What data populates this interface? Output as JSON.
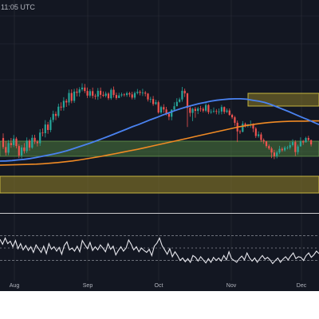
{
  "header": {
    "timestamp": "11:05 UTC"
  },
  "colors": {
    "background": "#131722",
    "up_candle": "#26a69a",
    "down_candle": "#ef5350",
    "ma_fast": "#4a82f0",
    "ma_slow": "#f08a24",
    "rsi": "#e8e8ee",
    "zone_green": "#4c7a3e",
    "zone_yellow": "#8a7a28",
    "grid": "#2a2e39"
  },
  "chart_data": [
    {
      "type": "candlestick",
      "title": "",
      "x_ticks": [
        "Aug",
        "Sep",
        "Oct",
        "Nov",
        "Dec"
      ],
      "indicators": [
        "moving-average-fast",
        "moving-average-slow"
      ],
      "zones": [
        "green-support-zone",
        "yellow-lower-zone",
        "yellow-resistance-zone"
      ],
      "candles": [
        [
          0.345,
          0.3,
          0.368,
          0.29
        ],
        [
          0.3,
          0.272,
          0.33,
          0.258
        ],
        [
          0.272,
          0.32,
          0.335,
          0.26
        ],
        [
          0.32,
          0.31,
          0.345,
          0.296
        ],
        [
          0.31,
          0.342,
          0.36,
          0.3
        ],
        [
          0.342,
          0.305,
          0.35,
          0.293
        ],
        [
          0.305,
          0.258,
          0.315,
          0.245
        ],
        [
          0.258,
          0.298,
          0.31,
          0.244
        ],
        [
          0.298,
          0.28,
          0.32,
          0.268
        ],
        [
          0.28,
          0.332,
          0.348,
          0.27
        ],
        [
          0.332,
          0.297,
          0.34,
          0.282
        ],
        [
          0.297,
          0.346,
          0.361,
          0.291
        ],
        [
          0.346,
          0.327,
          0.361,
          0.315
        ],
        [
          0.327,
          0.319,
          0.335,
          0.303
        ],
        [
          0.319,
          0.372,
          0.389,
          0.306
        ],
        [
          0.372,
          0.369,
          0.393,
          0.353
        ],
        [
          0.369,
          0.412,
          0.434,
          0.348
        ],
        [
          0.412,
          0.385,
          0.425,
          0.366
        ],
        [
          0.385,
          0.435,
          0.448,
          0.374
        ],
        [
          0.435,
          0.465,
          0.481,
          0.423
        ],
        [
          0.465,
          0.455,
          0.477,
          0.434
        ],
        [
          0.455,
          0.501,
          0.516,
          0.446
        ],
        [
          0.501,
          0.497,
          0.523,
          0.481
        ],
        [
          0.497,
          0.53,
          0.548,
          0.481
        ],
        [
          0.53,
          0.522,
          0.54,
          0.5
        ],
        [
          0.522,
          0.569,
          0.586,
          0.507
        ],
        [
          0.569,
          0.53,
          0.587,
          0.518
        ],
        [
          0.53,
          0.576,
          0.59,
          0.52
        ],
        [
          0.576,
          0.57,
          0.593,
          0.552
        ],
        [
          0.57,
          0.587,
          0.598,
          0.551
        ],
        [
          0.587,
          0.596,
          0.617,
          0.577
        ],
        [
          0.596,
          0.579,
          0.614,
          0.569
        ],
        [
          0.579,
          0.556,
          0.596,
          0.544
        ],
        [
          0.556,
          0.578,
          0.588,
          0.546
        ],
        [
          0.578,
          0.555,
          0.596,
          0.542
        ],
        [
          0.555,
          0.551,
          0.565,
          0.537
        ],
        [
          0.551,
          0.58,
          0.594,
          0.535
        ],
        [
          0.58,
          0.56,
          0.596,
          0.541
        ],
        [
          0.56,
          0.555,
          0.577,
          0.549
        ],
        [
          0.555,
          0.566,
          0.576,
          0.547
        ],
        [
          0.566,
          0.543,
          0.573,
          0.534
        ],
        [
          0.543,
          0.585,
          0.593,
          0.535
        ],
        [
          0.585,
          0.559,
          0.601,
          0.546
        ],
        [
          0.559,
          0.544,
          0.571,
          0.535
        ],
        [
          0.544,
          0.557,
          0.57,
          0.545
        ],
        [
          0.557,
          0.562,
          0.571,
          0.549
        ],
        [
          0.562,
          0.559,
          0.568,
          0.551
        ],
        [
          0.559,
          0.568,
          0.576,
          0.55
        ],
        [
          0.568,
          0.562,
          0.575,
          0.549
        ],
        [
          0.562,
          0.546,
          0.575,
          0.537
        ],
        [
          0.546,
          0.569,
          0.577,
          0.536
        ],
        [
          0.569,
          0.575,
          0.589,
          0.562
        ],
        [
          0.575,
          0.57,
          0.583,
          0.557
        ],
        [
          0.57,
          0.571,
          0.59,
          0.554
        ],
        [
          0.571,
          0.566,
          0.579,
          0.552
        ],
        [
          0.566,
          0.537,
          0.569,
          0.527
        ],
        [
          0.537,
          0.539,
          0.55,
          0.521
        ],
        [
          0.539,
          0.514,
          0.554,
          0.505
        ],
        [
          0.514,
          0.523,
          0.535,
          0.51
        ],
        [
          0.523,
          0.472,
          0.531,
          0.466
        ],
        [
          0.472,
          0.499,
          0.506,
          0.465
        ],
        [
          0.499,
          0.487,
          0.513,
          0.471
        ],
        [
          0.487,
          0.466,
          0.5,
          0.458
        ],
        [
          0.466,
          0.451,
          0.469,
          0.434
        ],
        [
          0.451,
          0.486,
          0.488,
          0.433
        ],
        [
          0.486,
          0.503,
          0.523,
          0.478
        ],
        [
          0.503,
          0.525,
          0.543,
          0.516
        ],
        [
          0.525,
          0.537,
          0.546,
          0.521
        ],
        [
          0.537,
          0.58,
          0.599,
          0.526
        ],
        [
          0.58,
          0.567,
          0.591,
          0.549
        ],
        [
          0.567,
          0.495,
          0.57,
          0.4
        ],
        [
          0.495,
          0.47,
          0.504,
          0.451
        ],
        [
          0.47,
          0.49,
          0.495,
          0.429
        ],
        [
          0.49,
          0.48,
          0.5,
          0.446
        ],
        [
          0.48,
          0.492,
          0.5,
          0.464
        ],
        [
          0.492,
          0.49,
          0.505,
          0.476
        ],
        [
          0.49,
          0.481,
          0.498,
          0.472
        ],
        [
          0.481,
          0.509,
          0.519,
          0.473
        ],
        [
          0.509,
          0.474,
          0.514,
          0.464
        ],
        [
          0.474,
          0.476,
          0.488,
          0.465
        ],
        [
          0.476,
          0.479,
          0.497,
          0.47
        ],
        [
          0.479,
          0.476,
          0.489,
          0.463
        ],
        [
          0.476,
          0.477,
          0.492,
          0.462
        ],
        [
          0.477,
          0.499,
          0.51,
          0.463
        ],
        [
          0.499,
          0.475,
          0.502,
          0.465
        ],
        [
          0.475,
          0.482,
          0.492,
          0.469
        ],
        [
          0.482,
          0.46,
          0.492,
          0.456
        ],
        [
          0.46,
          0.448,
          0.466,
          0.44
        ],
        [
          0.448,
          0.421,
          0.455,
          0.406
        ],
        [
          0.421,
          0.378,
          0.432,
          0.325
        ],
        [
          0.378,
          0.376,
          0.386,
          0.365
        ],
        [
          0.376,
          0.416,
          0.429,
          0.373
        ],
        [
          0.416,
          0.407,
          0.422,
          0.398
        ],
        [
          0.407,
          0.413,
          0.415,
          0.398
        ],
        [
          0.413,
          0.413,
          0.432,
          0.396
        ],
        [
          0.413,
          0.392,
          0.418,
          0.374
        ],
        [
          0.392,
          0.355,
          0.4,
          0.345
        ],
        [
          0.355,
          0.363,
          0.378,
          0.346
        ],
        [
          0.363,
          0.335,
          0.373,
          0.325
        ],
        [
          0.335,
          0.328,
          0.343,
          0.316
        ],
        [
          0.328,
          0.305,
          0.331,
          0.296
        ],
        [
          0.305,
          0.293,
          0.313,
          0.286
        ],
        [
          0.293,
          0.273,
          0.301,
          0.245
        ],
        [
          0.273,
          0.255,
          0.286,
          0.24
        ],
        [
          0.255,
          0.273,
          0.282,
          0.244
        ],
        [
          0.273,
          0.291,
          0.306,
          0.265
        ],
        [
          0.291,
          0.284,
          0.299,
          0.276
        ],
        [
          0.284,
          0.297,
          0.305,
          0.278
        ],
        [
          0.297,
          0.297,
          0.306,
          0.288
        ],
        [
          0.297,
          0.31,
          0.325,
          0.288
        ],
        [
          0.31,
          0.325,
          0.339,
          0.303
        ],
        [
          0.325,
          0.275,
          0.334,
          0.256
        ],
        [
          0.275,
          0.303,
          0.312,
          0.263
        ],
        [
          0.303,
          0.329,
          0.348,
          0.305
        ],
        [
          0.329,
          0.323,
          0.336,
          0.311
        ],
        [
          0.323,
          0.345,
          0.351,
          0.337
        ],
        [
          0.345,
          0.335,
          0.356,
          0.33
        ],
        [
          0.335,
          0.313,
          0.337,
          0.303
        ]
      ],
      "ma_fast": [
        0.23,
        0.231,
        0.233,
        0.236,
        0.239,
        0.243,
        0.248,
        0.254,
        0.26,
        0.266,
        0.273,
        0.281,
        0.29,
        0.3,
        0.31,
        0.32,
        0.331,
        0.342,
        0.353,
        0.365,
        0.377,
        0.389,
        0.401,
        0.412,
        0.424,
        0.436,
        0.447,
        0.459,
        0.47,
        0.481,
        0.491,
        0.5,
        0.508,
        0.516,
        0.522,
        0.528,
        0.533,
        0.536,
        0.539,
        0.54,
        0.54,
        0.538,
        0.533,
        0.528,
        0.522,
        0.512,
        0.5,
        0.488,
        0.476,
        0.463,
        0.45,
        0.438,
        0.425,
        0.412
      ],
      "ma_slow": [
        0.21,
        0.211,
        0.212,
        0.213,
        0.214,
        0.215,
        0.217,
        0.22,
        0.223,
        0.227,
        0.231,
        0.236,
        0.242,
        0.248,
        0.254,
        0.261,
        0.268,
        0.275,
        0.282,
        0.289,
        0.297,
        0.305,
        0.313,
        0.321,
        0.329,
        0.337,
        0.345,
        0.353,
        0.361,
        0.369,
        0.377,
        0.385,
        0.393,
        0.401,
        0.407,
        0.413,
        0.418,
        0.422,
        0.425,
        0.427,
        0.428,
        0.429,
        0.429,
        0.43,
        0.43
      ],
      "rsi": [
        64,
        56,
        66,
        57,
        61,
        52,
        62,
        49,
        57,
        47,
        54,
        46,
        52,
        43,
        55,
        49,
        43,
        53,
        41,
        57,
        48,
        52,
        45,
        51,
        40,
        54,
        60,
        47,
        50,
        45,
        53,
        44,
        62,
        55,
        49,
        59,
        46,
        52,
        47,
        55,
        50,
        44,
        57,
        48,
        53,
        39,
        46,
        52,
        45,
        50,
        63,
        56,
        47,
        52,
        44,
        50,
        46,
        43,
        48,
        38,
        53,
        58,
        66,
        54,
        47,
        40,
        49,
        36,
        44,
        38,
        30,
        34,
        28,
        33,
        27,
        38,
        35,
        29,
        36,
        31,
        26,
        33,
        27,
        35,
        30,
        34,
        29,
        38,
        31,
        44,
        33,
        30,
        27,
        33,
        37,
        31,
        42,
        34,
        29,
        34,
        27,
        33,
        38,
        32,
        35,
        31,
        25,
        30,
        34,
        27,
        32,
        36,
        31,
        37,
        42,
        33,
        36,
        35,
        30,
        38,
        42,
        35,
        39,
        45,
        41
      ],
      "rsi_levels": [
        70,
        50,
        30
      ]
    }
  ]
}
